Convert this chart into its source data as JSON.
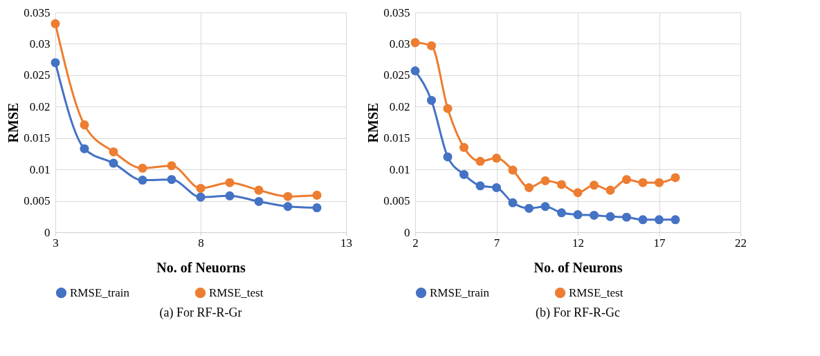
{
  "chart_data": [
    {
      "type": "line",
      "xlabel": "No. of Neuorns",
      "ylabel": "RMSE",
      "x": [
        3,
        4,
        5,
        6,
        7,
        8,
        9,
        10,
        11,
        12
      ],
      "xlim": [
        3,
        13
      ],
      "xticks": [
        3,
        8,
        13
      ],
      "ylim": [
        0,
        0.035
      ],
      "yticks": [
        0,
        0.005,
        0.01,
        0.015,
        0.02,
        0.025,
        0.03,
        0.035
      ],
      "grid": true,
      "legend": "bottom",
      "marker": "circle",
      "annotations": [
        "(a) For RF-R-Gr"
      ],
      "series": [
        {
          "name": "RMSE_train",
          "color": "#4472c4",
          "values": [
            0.027,
            0.0133,
            0.011,
            0.0083,
            0.0084,
            0.0056,
            0.0058,
            0.0049,
            0.0041,
            0.0039
          ]
        },
        {
          "name": "RMSE_test",
          "color": "#ed7d31",
          "values": [
            0.0332,
            0.0171,
            0.0128,
            0.0102,
            0.0106,
            0.007,
            0.0079,
            0.0067,
            0.0057,
            0.0059
          ]
        }
      ]
    },
    {
      "type": "line",
      "xlabel": "No. of Neurons",
      "ylabel": "RMSE",
      "x": [
        2,
        3,
        4,
        5,
        6,
        7,
        8,
        9,
        10,
        11,
        12,
        13,
        14,
        15,
        16,
        17,
        18
      ],
      "xlim": [
        2,
        22
      ],
      "xticks": [
        2,
        7,
        12,
        17,
        22
      ],
      "ylim": [
        0,
        0.035
      ],
      "yticks": [
        0,
        0.005,
        0.01,
        0.015,
        0.02,
        0.025,
        0.03,
        0.035
      ],
      "grid": true,
      "legend": "bottom",
      "marker": "circle",
      "annotations": [
        "(b) For RF-R-Gc"
      ],
      "series": [
        {
          "name": "RMSE_train",
          "color": "#4472c4",
          "values": [
            0.0257,
            0.021,
            0.012,
            0.0092,
            0.0074,
            0.0071,
            0.0047,
            0.0038,
            0.0041,
            0.0031,
            0.0028,
            0.0027,
            0.0025,
            0.0024,
            0.002,
            0.002,
            0.002
          ]
        },
        {
          "name": "RMSE_test",
          "color": "#ed7d31",
          "values": [
            0.0302,
            0.0297,
            0.0197,
            0.0135,
            0.0113,
            0.0118,
            0.0099,
            0.0071,
            0.0082,
            0.0076,
            0.0063,
            0.0075,
            0.0067,
            0.0084,
            0.0079,
            0.0079,
            0.0087
          ]
        }
      ]
    }
  ]
}
